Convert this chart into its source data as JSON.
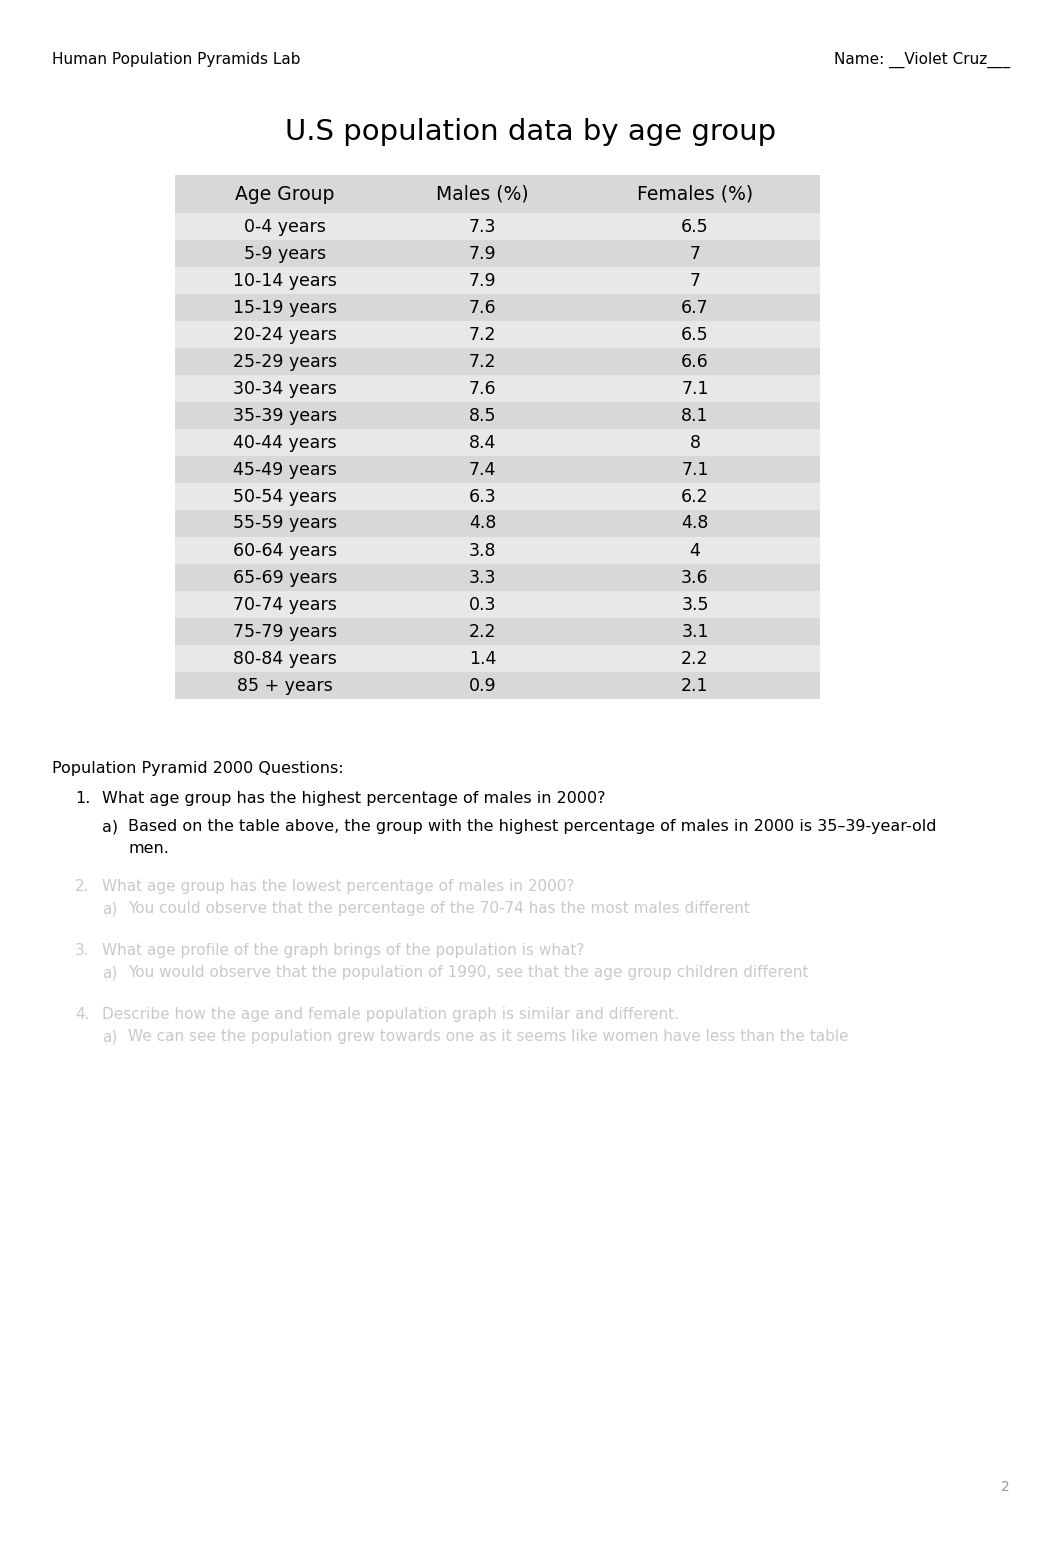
{
  "header_left": "Human Population Pyramids Lab",
  "header_right": "Name: __Violet Cruz___",
  "title": "U.S population data by age group",
  "table_headers": [
    "Age Group",
    "Males (%)",
    "Females (%)"
  ],
  "table_data": [
    [
      "0-4 years",
      "7.3",
      "6.5"
    ],
    [
      "5-9 years",
      "7.9",
      "7"
    ],
    [
      "10-14 years",
      "7.9",
      "7"
    ],
    [
      "15-19 years",
      "7.6",
      "6.7"
    ],
    [
      "20-24 years",
      "7.2",
      "6.5"
    ],
    [
      "25-29 years",
      "7.2",
      "6.6"
    ],
    [
      "30-34 years",
      "7.6",
      "7.1"
    ],
    [
      "35-39 years",
      "8.5",
      "8.1"
    ],
    [
      "40-44 years",
      "8.4",
      "8"
    ],
    [
      "45-49 years",
      "7.4",
      "7.1"
    ],
    [
      "50-54 years",
      "6.3",
      "6.2"
    ],
    [
      "55-59 years",
      "4.8",
      "4.8"
    ],
    [
      "60-64 years",
      "3.8",
      "4"
    ],
    [
      "65-69 years",
      "3.3",
      "3.6"
    ],
    [
      "70-74 years",
      "0.3",
      "3.5"
    ],
    [
      "75-79 years",
      "2.2",
      "3.1"
    ],
    [
      "80-84 years",
      "1.4",
      "2.2"
    ],
    [
      "85 + years",
      "0.9",
      "2.1"
    ]
  ],
  "question_section_title": "Population Pyramid 2000 Questions:",
  "question_1": "What age group has the highest percentage of males in 2000?",
  "answer_1a_line1": "Based on the table above, the group with the highest percentage of males in 2000 is 35–39-year-old",
  "answer_1a_line2": "men.",
  "page_number": "2",
  "bg_color": "#ffffff",
  "table_bg": "#d8d8d8",
  "table_row_bg_light": "#e8e8e8",
  "table_row_bg_dark": "#d0d0d0",
  "blurred_text_color": "#c0c0c0",
  "blurred_lines": [
    [
      "2.",
      "What age group has the lowest percentage of males in 2000?",
      false
    ],
    [
      "a)",
      "You could observe that the percentage of the 70-74 has the most males different",
      false
    ],
    [
      "",
      "",
      false
    ],
    [
      "3.",
      "What age profile of the graph brings of the population is what?",
      false
    ],
    [
      "a)",
      "You would observe that the population of 1990, see that the age group children different",
      false
    ],
    [
      "",
      "",
      false
    ],
    [
      "4.",
      "Describe how the age and female population graph is similar and different.",
      false
    ],
    [
      "a)",
      "We can see the population grew towards one as it seems like women have less than the table",
      false
    ]
  ]
}
